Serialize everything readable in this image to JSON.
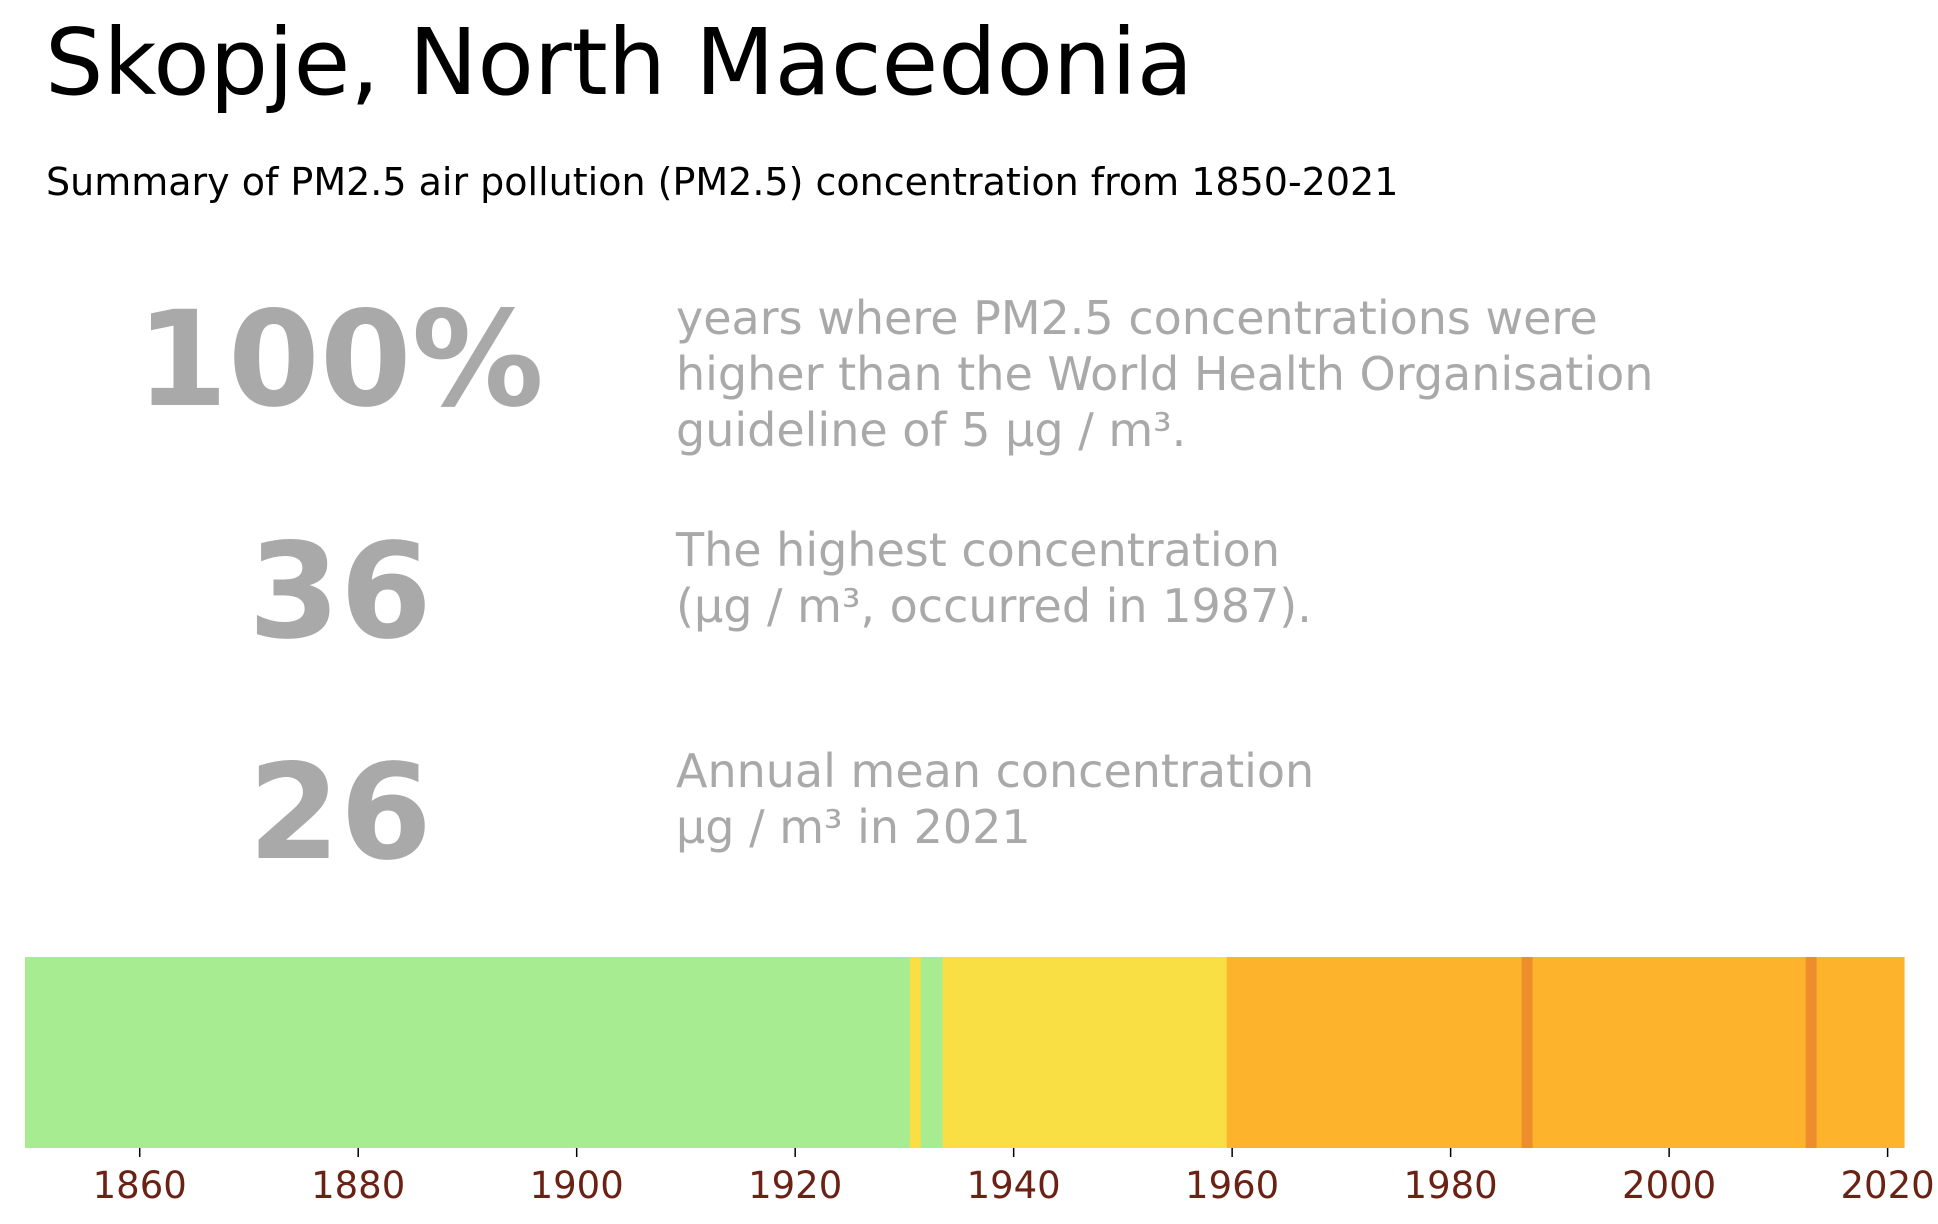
{
  "title": "Skopje, North Macedonia",
  "subtitle": "Summary of PM2.5 air pollution (PM2.5) concentration from 1850-2021",
  "stats": [
    {
      "value": "100%",
      "text": "years where PM2.5 concentrations were\nhigher than the World Health Organisation\nguideline of 5 μg / m³."
    },
    {
      "value": "36",
      "text": "The highest concentration\n(μg / m³, occurred in 1987)."
    },
    {
      "value": "26",
      "text": "Annual mean concentration\nμg / m³ in 2021"
    }
  ],
  "colors": {
    "green": "#a8ec91",
    "yellow": "#f9df44",
    "orange": "#fdb32b",
    "dark_orange": "#ee8d2b",
    "tick_label": "#6b2214"
  },
  "chart_data": {
    "type": "heatmap",
    "title": "",
    "xlabel": "",
    "ylabel": "",
    "xlim": [
      1849.5,
      2021.5
    ],
    "x_ticks": [
      "1860",
      "1880",
      "1900",
      "1920",
      "1940",
      "1960",
      "1980",
      "2000",
      "2020"
    ],
    "grid": false,
    "segments": [
      {
        "start": 1850,
        "end": 1930,
        "category": "green"
      },
      {
        "start": 1931,
        "end": 1931,
        "category": "yellow"
      },
      {
        "start": 1932,
        "end": 1933,
        "category": "green"
      },
      {
        "start": 1934,
        "end": 1959,
        "category": "yellow"
      },
      {
        "start": 1960,
        "end": 1986,
        "category": "orange"
      },
      {
        "start": 1987,
        "end": 1987,
        "category": "dark_orange"
      },
      {
        "start": 1988,
        "end": 2012,
        "category": "orange"
      },
      {
        "start": 2013,
        "end": 2013,
        "category": "dark_orange"
      },
      {
        "start": 2014,
        "end": 2021,
        "category": "orange"
      }
    ]
  }
}
